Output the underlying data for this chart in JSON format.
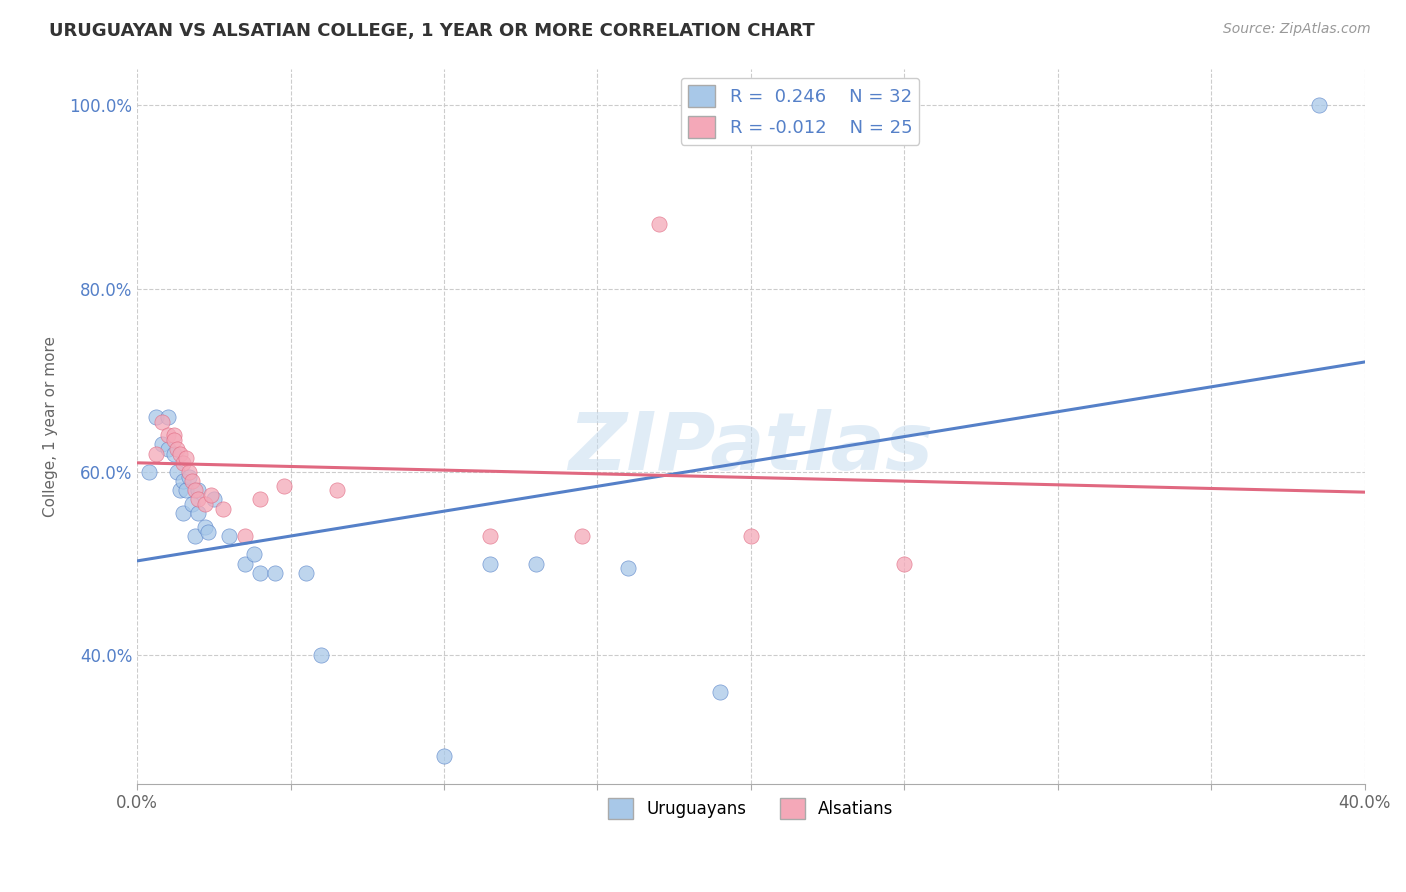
{
  "title": "URUGUAYAN VS ALSATIAN COLLEGE, 1 YEAR OR MORE CORRELATION CHART",
  "source": "Source: ZipAtlas.com",
  "ylabel": "College, 1 year or more",
  "xlim": [
    0.0,
    0.4
  ],
  "ylim": [
    0.26,
    1.04
  ],
  "xticks": [
    0.0,
    0.05,
    0.1,
    0.15,
    0.2,
    0.25,
    0.3,
    0.35,
    0.4
  ],
  "yticks": [
    0.4,
    0.6,
    0.8,
    1.0
  ],
  "ytick_labels": [
    "40.0%",
    "60.0%",
    "80.0%",
    "100.0%"
  ],
  "xtick_labels": [
    "0.0%",
    "",
    "",
    "",
    "",
    "",
    "",
    "",
    "40.0%"
  ],
  "blue_R": 0.246,
  "blue_N": 32,
  "pink_R": -0.012,
  "pink_N": 25,
  "blue_color": "#a8c8e8",
  "pink_color": "#f4a8b8",
  "blue_line_color": "#5580c8",
  "pink_line_color": "#e06880",
  "legend_label_blue": "Uruguayans",
  "legend_label_pink": "Alsatians",
  "watermark": "ZIPatlas",
  "background_color": "#ffffff",
  "blue_x": [
    0.004,
    0.006,
    0.008,
    0.01,
    0.01,
    0.012,
    0.013,
    0.014,
    0.015,
    0.015,
    0.016,
    0.017,
    0.018,
    0.019,
    0.02,
    0.02,
    0.022,
    0.023,
    0.025,
    0.03,
    0.035,
    0.038,
    0.04,
    0.045,
    0.055,
    0.06,
    0.1,
    0.115,
    0.13,
    0.16,
    0.19,
    0.385
  ],
  "blue_y": [
    0.6,
    0.66,
    0.63,
    0.66,
    0.625,
    0.62,
    0.6,
    0.58,
    0.59,
    0.555,
    0.58,
    0.595,
    0.565,
    0.53,
    0.58,
    0.555,
    0.54,
    0.535,
    0.57,
    0.53,
    0.5,
    0.51,
    0.49,
    0.49,
    0.49,
    0.4,
    0.29,
    0.5,
    0.5,
    0.495,
    0.36,
    1.0
  ],
  "pink_x": [
    0.006,
    0.008,
    0.01,
    0.012,
    0.012,
    0.013,
    0.014,
    0.015,
    0.016,
    0.017,
    0.018,
    0.019,
    0.02,
    0.022,
    0.024,
    0.028,
    0.035,
    0.04,
    0.048,
    0.065,
    0.115,
    0.145,
    0.17,
    0.2,
    0.25
  ],
  "pink_y": [
    0.62,
    0.655,
    0.64,
    0.64,
    0.635,
    0.625,
    0.62,
    0.61,
    0.615,
    0.6,
    0.59,
    0.58,
    0.57,
    0.565,
    0.575,
    0.56,
    0.53,
    0.57,
    0.585,
    0.58,
    0.53,
    0.53,
    0.87,
    0.53,
    0.5
  ],
  "blue_trend_x0": 0.0,
  "blue_trend_y0": 0.503,
  "blue_trend_x1": 0.4,
  "blue_trend_y1": 0.72,
  "pink_trend_x0": 0.0,
  "pink_trend_y0": 0.61,
  "pink_trend_x1": 0.4,
  "pink_trend_y1": 0.578
}
